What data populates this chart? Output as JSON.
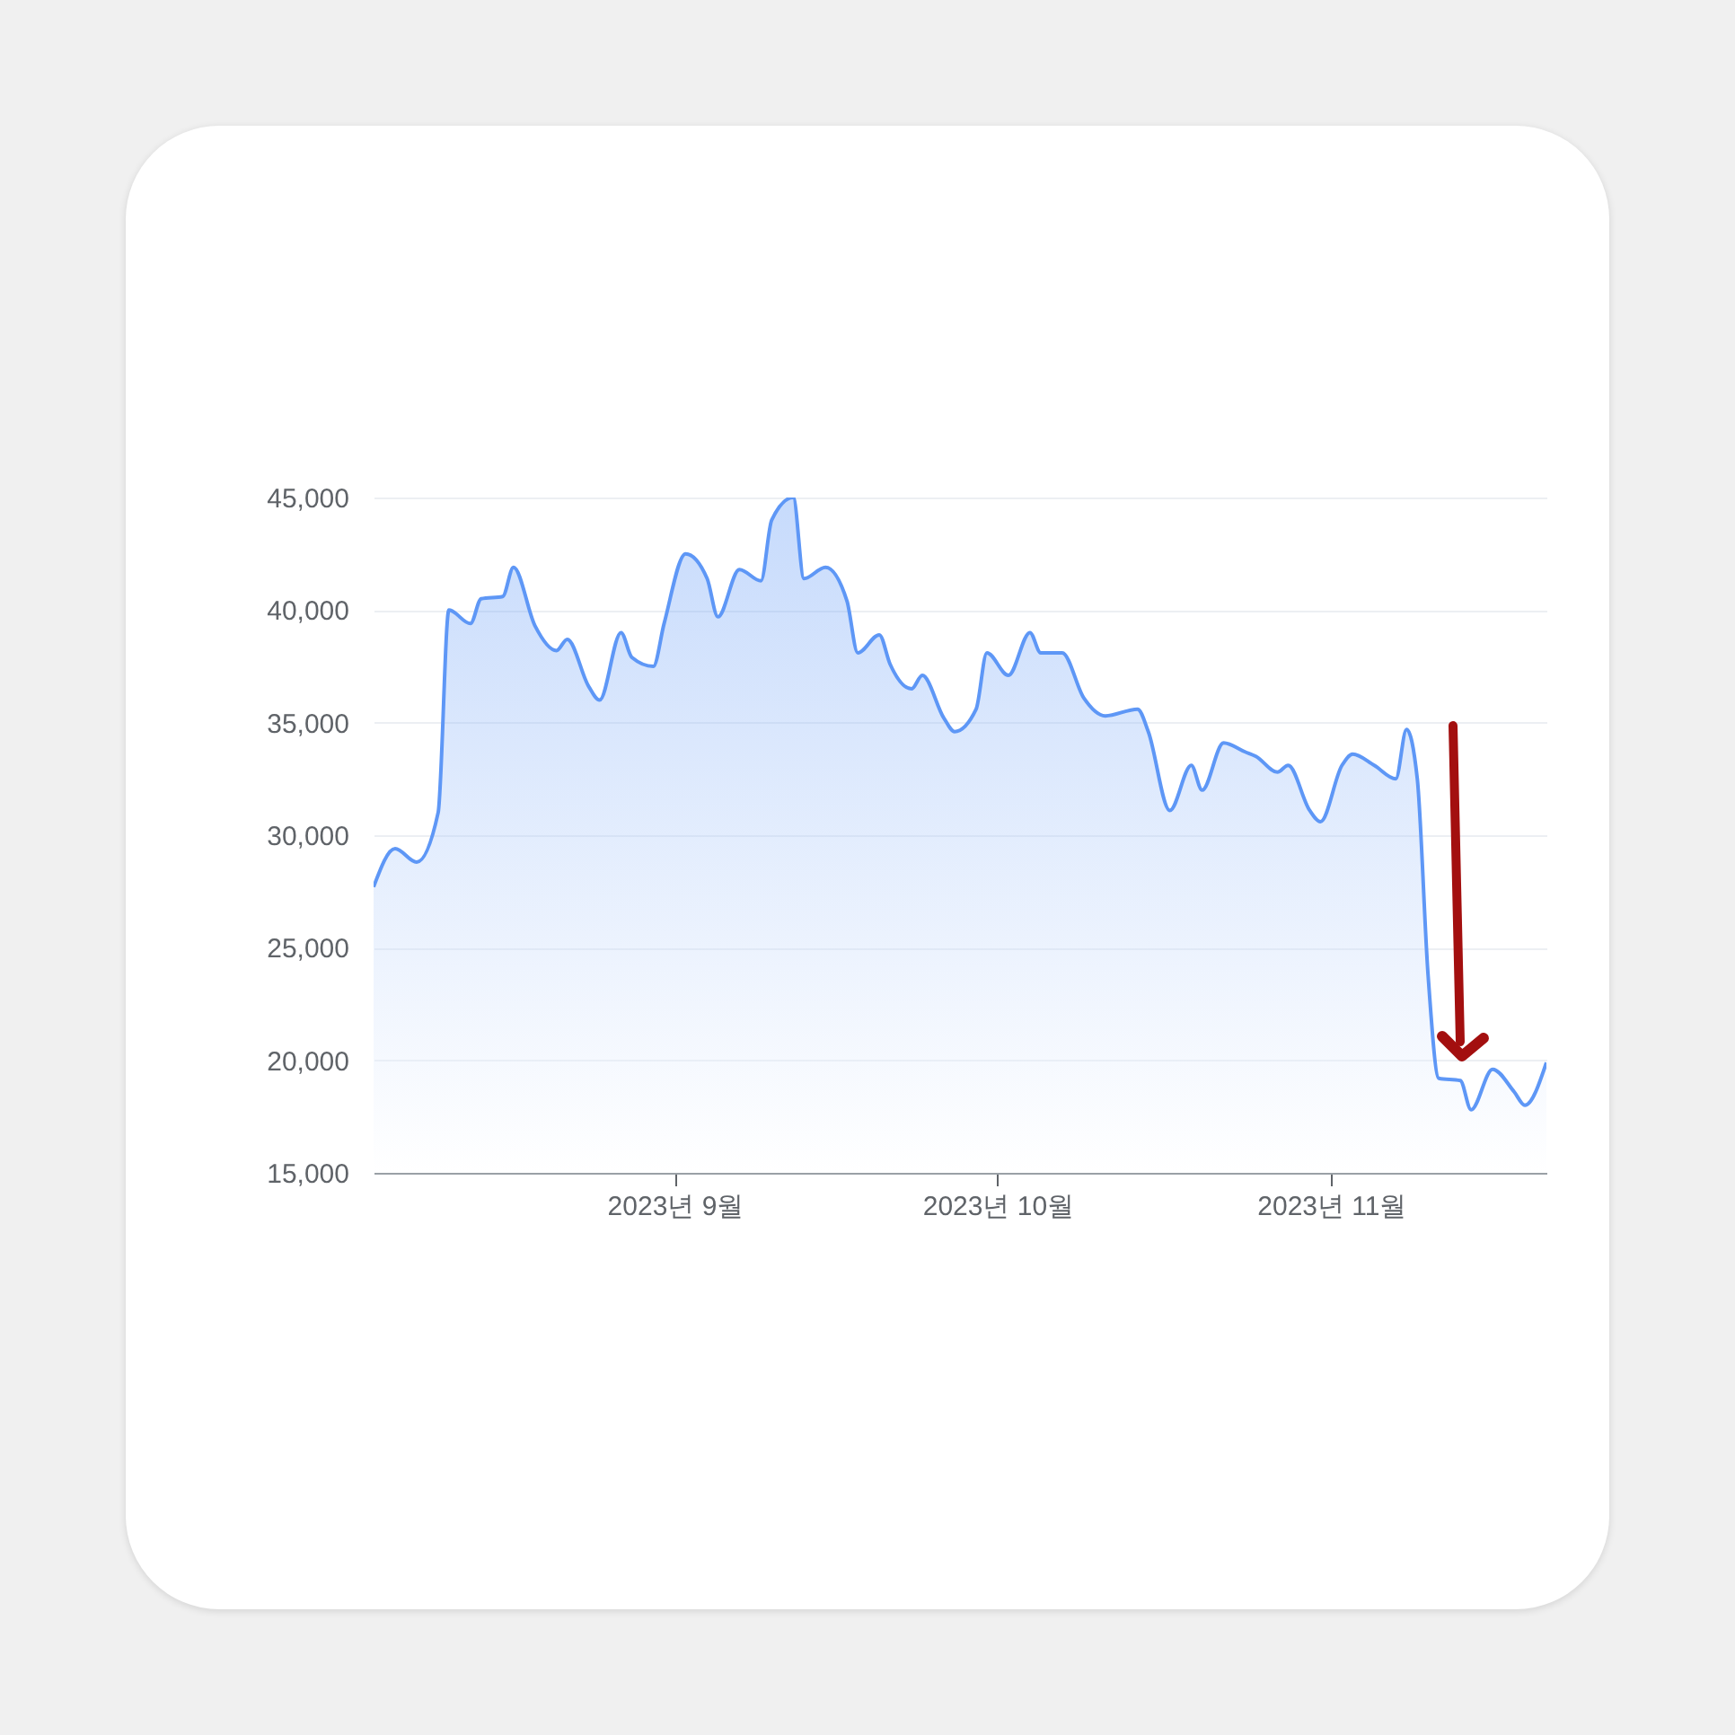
{
  "chart_data": {
    "type": "area",
    "color": "#5e97f6",
    "x": [
      "2023-08-04",
      "2023-08-06",
      "2023-08-08",
      "2023-08-10",
      "2023-08-11",
      "2023-08-13",
      "2023-08-14",
      "2023-08-16",
      "2023-08-17",
      "2023-08-19",
      "2023-08-21",
      "2023-08-22",
      "2023-08-24",
      "2023-08-25",
      "2023-08-27",
      "2023-08-28",
      "2023-08-30",
      "2023-08-31",
      "2023-09-02",
      "2023-09-04",
      "2023-09-05",
      "2023-09-07",
      "2023-09-09",
      "2023-09-10",
      "2023-09-12",
      "2023-09-13",
      "2023-09-15",
      "2023-09-17",
      "2023-09-18",
      "2023-09-20",
      "2023-09-21",
      "2023-09-23",
      "2023-09-24",
      "2023-09-26",
      "2023-09-27",
      "2023-09-29",
      "2023-09-30",
      "2023-10-02",
      "2023-10-04",
      "2023-10-05",
      "2023-10-07",
      "2023-10-09",
      "2023-10-11",
      "2023-10-14",
      "2023-10-15",
      "2023-10-17",
      "2023-10-19",
      "2023-10-20",
      "2023-10-22",
      "2023-10-24",
      "2023-10-25",
      "2023-10-27",
      "2023-10-28",
      "2023-10-30",
      "2023-10-31",
      "2023-11-02",
      "2023-11-03",
      "2023-11-05",
      "2023-11-07",
      "2023-11-08",
      "2023-11-09",
      "2023-11-10",
      "2023-11-11",
      "2023-11-13",
      "2023-11-14",
      "2023-11-16",
      "2023-11-18",
      "2023-11-19",
      "2023-11-21"
    ],
    "values": [
      27700,
      29400,
      28800,
      31000,
      40000,
      39400,
      40500,
      40600,
      41900,
      39300,
      38200,
      38700,
      36600,
      36000,
      39000,
      37900,
      37500,
      39400,
      42500,
      41400,
      39700,
      41800,
      41300,
      44000,
      45000,
      41400,
      41900,
      40400,
      38100,
      38900,
      37600,
      36500,
      37100,
      35200,
      34600,
      35600,
      38100,
      37100,
      39000,
      38100,
      38100,
      36100,
      35300,
      35600,
      34600,
      31100,
      33100,
      32000,
      34100,
      33700,
      33500,
      32800,
      33100,
      31100,
      30600,
      33100,
      33600,
      33100,
      32500,
      34700,
      32500,
      23800,
      19200,
      19100,
      17800,
      19600,
      18600,
      18000,
      19900
    ],
    "xlim": [
      "2023-08-04",
      "2023-11-21"
    ],
    "xticks": [
      {
        "value": "2023-09-01",
        "label": "2023년 9월"
      },
      {
        "value": "2023-10-01",
        "label": "2023년 10월"
      },
      {
        "value": "2023-11-01",
        "label": "2023년 11월"
      }
    ],
    "ylim": [
      15000,
      45000
    ],
    "yticks": [
      {
        "value": 15000,
        "label": "15,000"
      },
      {
        "value": 20000,
        "label": "20,000"
      },
      {
        "value": 25000,
        "label": "25,000"
      },
      {
        "value": 30000,
        "label": "30,000"
      },
      {
        "value": 35000,
        "label": "35,000"
      },
      {
        "value": 40000,
        "label": "40,000"
      },
      {
        "value": 45000,
        "label": "45,000"
      }
    ],
    "grid": "y"
  }
}
